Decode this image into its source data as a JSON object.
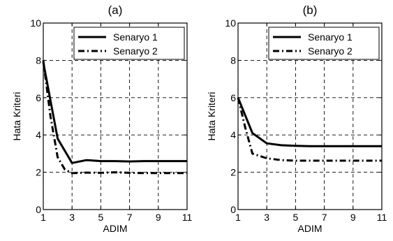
{
  "chart_data": [
    {
      "type": "line",
      "title": "(a)",
      "xlabel": "ADIM",
      "ylabel": "Hata Kriteri",
      "xlim": [
        1,
        11
      ],
      "ylim": [
        0,
        10
      ],
      "xticks": [
        "1",
        "3",
        "5",
        "7",
        "9",
        "11"
      ],
      "yticks": [
        "0",
        "2",
        "4",
        "6",
        "8",
        "10"
      ],
      "grid": true,
      "legend_position": "top-right",
      "series": [
        {
          "name": "Senaryo 1",
          "style": "solid",
          "x": [
            1,
            2,
            3,
            4,
            5,
            6,
            7,
            8,
            9,
            10,
            11
          ],
          "values": [
            7.9,
            3.8,
            2.5,
            2.65,
            2.6,
            2.6,
            2.58,
            2.6,
            2.6,
            2.6,
            2.6
          ]
        },
        {
          "name": "Senaryo 2",
          "style": "dash-dot",
          "x": [
            1,
            1.5,
            2,
            2.5,
            3,
            4,
            5,
            6,
            7,
            8,
            9,
            10,
            11
          ],
          "values": [
            8.0,
            5.0,
            2.8,
            2.15,
            1.95,
            1.98,
            1.97,
            2.0,
            1.97,
            1.96,
            1.96,
            1.96,
            1.96
          ]
        }
      ]
    },
    {
      "type": "line",
      "title": "(b)",
      "xlabel": "ADIM",
      "ylabel": "Hata Kriteri",
      "xlim": [
        1,
        11
      ],
      "ylim": [
        0,
        10
      ],
      "xticks": [
        "1",
        "3",
        "5",
        "7",
        "9",
        "11"
      ],
      "yticks": [
        "0",
        "2",
        "4",
        "6",
        "8",
        "10"
      ],
      "grid": true,
      "legend_position": "top-right",
      "series": [
        {
          "name": "Senaryo 1",
          "style": "solid",
          "x": [
            1,
            2,
            3,
            4,
            5,
            6,
            7,
            8,
            9,
            10,
            11
          ],
          "values": [
            6.0,
            4.1,
            3.55,
            3.45,
            3.42,
            3.4,
            3.4,
            3.4,
            3.4,
            3.4,
            3.4
          ]
        },
        {
          "name": "Senaryo 2",
          "style": "dash-dot",
          "x": [
            1,
            1.5,
            2,
            3,
            4,
            5,
            6,
            7,
            8,
            9,
            10,
            11
          ],
          "values": [
            6.0,
            4.4,
            3.0,
            2.75,
            2.65,
            2.62,
            2.62,
            2.62,
            2.62,
            2.62,
            2.62,
            2.62
          ]
        }
      ]
    }
  ]
}
